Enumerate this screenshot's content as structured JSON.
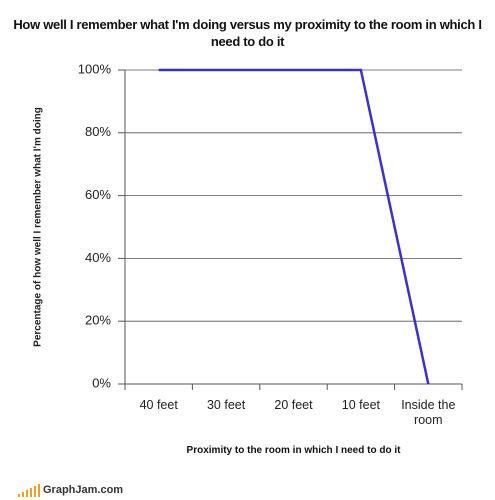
{
  "chart_data": {
    "type": "line",
    "title": "How well I remember what I'm doing versus my proximity to the room in which I need to do it",
    "x_label": "Proximity to the room in which I need to do it",
    "y_label": "Percentage of how well I remember what I'm doing",
    "categories": [
      "40 feet",
      "30 feet",
      "20 feet",
      "10 feet",
      "Inside the room"
    ],
    "values": [
      100,
      100,
      100,
      100,
      0
    ],
    "color": "#3b2fd4",
    "ylim": [
      0,
      100
    ],
    "yticks": [
      {
        "value": 0,
        "label": "0%"
      },
      {
        "value": 20,
        "label": "20%"
      },
      {
        "value": 40,
        "label": "40%"
      },
      {
        "value": 60,
        "label": "60%"
      },
      {
        "value": 80,
        "label": "80%"
      },
      {
        "value": 100,
        "label": "100%"
      }
    ],
    "grid": true,
    "watermark": "GraphJam.com"
  }
}
